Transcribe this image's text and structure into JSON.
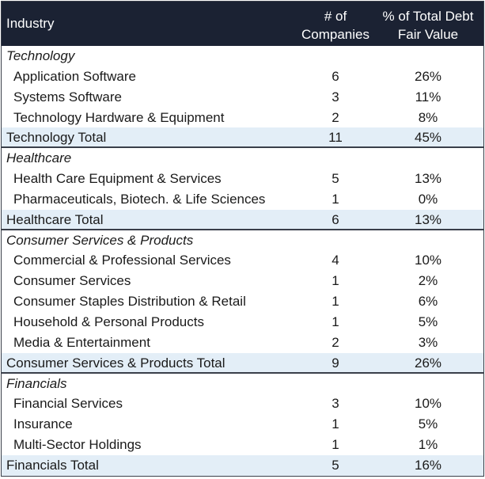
{
  "header": {
    "industry": "Industry",
    "companies": "# of Companies",
    "percent": "% of Total Debt Fair Value"
  },
  "groups": [
    {
      "name": "Technology",
      "items": [
        {
          "label": "Application Software",
          "count": "6",
          "pct": "26%"
        },
        {
          "label": "Systems Software",
          "count": "3",
          "pct": "11%"
        },
        {
          "label": "Technology Hardware & Equipment",
          "count": "2",
          "pct": "8%"
        }
      ],
      "total": {
        "label": "Technology Total",
        "count": "11",
        "pct": "45%"
      }
    },
    {
      "name": "Healthcare",
      "items": [
        {
          "label": "Health Care Equipment & Services",
          "count": "5",
          "pct": "13%"
        },
        {
          "label": "Pharmaceuticals, Biotech. & Life Sciences",
          "count": "1",
          "pct": "0%"
        }
      ],
      "total": {
        "label": "Healthcare Total",
        "count": "6",
        "pct": "13%"
      }
    },
    {
      "name": "Consumer Services & Products",
      "items": [
        {
          "label": "Commercial & Professional Services",
          "count": "4",
          "pct": "10%"
        },
        {
          "label": "Consumer Services",
          "count": "1",
          "pct": "2%"
        },
        {
          "label": "Consumer Staples Distribution & Retail",
          "count": "1",
          "pct": "6%"
        },
        {
          "label": "Household & Personal Products",
          "count": "1",
          "pct": "5%"
        },
        {
          "label": "Media & Entertainment",
          "count": "2",
          "pct": "3%"
        }
      ],
      "total": {
        "label": "Consumer Services & Products Total",
        "count": "9",
        "pct": "26%"
      }
    },
    {
      "name": "Financials",
      "items": [
        {
          "label": "Financial Services",
          "count": "3",
          "pct": "10%"
        },
        {
          "label": "Insurance",
          "count": "1",
          "pct": "5%"
        },
        {
          "label": "Multi-Sector Holdings",
          "count": "1",
          "pct": "1%"
        }
      ],
      "total": {
        "label": "Financials Total",
        "count": "5",
        "pct": "16%"
      }
    }
  ],
  "colors": {
    "header_bg": "#1b2233",
    "total_bg": "#e3eef7"
  }
}
